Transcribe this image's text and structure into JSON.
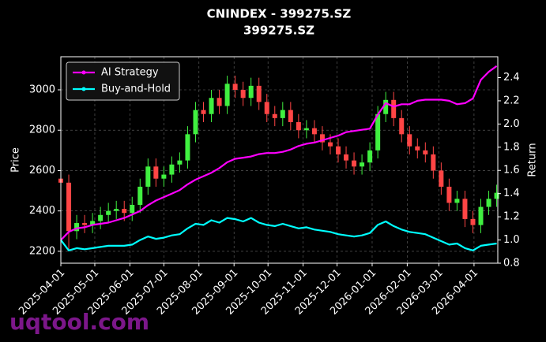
{
  "chart_data": {
    "type": "candlestick",
    "title": "CNINDEX - 399275.SZ",
    "subtitle": "399275.SZ",
    "ylabel": "Price",
    "y2label": "Return",
    "watermark": "uqtool.com",
    "up_color": "#40f040",
    "down_color": "#ff4545",
    "grid": true,
    "legend": "upper-left",
    "xlim": [
      "2025-04-01",
      "2026-04-22"
    ],
    "xticks": [
      "2025-04-01",
      "2025-05-01",
      "2025-06-01",
      "2025-07-01",
      "2025-08-01",
      "2025-09-01",
      "2025-10-01",
      "2025-11-01",
      "2025-12-01",
      "2026-01-01",
      "2026-02-01",
      "2026-03-01",
      "2026-04-01"
    ],
    "ylim": [
      2141,
      3164
    ],
    "yticks": [
      2200,
      2400,
      2600,
      2800,
      3000
    ],
    "y2lim": [
      0.8,
      2.58
    ],
    "y2ticks": [
      0.8,
      {
        "value": 1,
        "label": "1.0"
      },
      1.2,
      1.4,
      1.6,
      1.8,
      {
        "value": 2,
        "label": "2.0"
      },
      2.2,
      2.4
    ],
    "x": [
      "2025-04-01",
      "2025-04-08",
      "2025-04-15",
      "2025-04-22",
      "2025-04-29",
      "2025-05-06",
      "2025-05-13",
      "2025-05-20",
      "2025-05-27",
      "2025-06-03",
      "2025-06-10",
      "2025-06-17",
      "2025-06-24",
      "2025-07-01",
      "2025-07-08",
      "2025-07-15",
      "2025-07-22",
      "2025-07-29",
      "2025-08-05",
      "2025-08-12",
      "2025-08-19",
      "2025-08-26",
      "2025-09-02",
      "2025-09-09",
      "2025-09-16",
      "2025-09-23",
      "2025-09-30",
      "2025-10-07",
      "2025-10-14",
      "2025-10-21",
      "2025-10-28",
      "2025-11-04",
      "2025-11-11",
      "2025-11-18",
      "2025-11-25",
      "2025-12-02",
      "2025-12-09",
      "2025-12-16",
      "2025-12-23",
      "2025-12-30",
      "2026-01-06",
      "2026-01-13",
      "2026-01-20",
      "2026-01-27",
      "2026-02-03",
      "2026-02-10",
      "2026-02-17",
      "2026-02-24",
      "2026-03-03",
      "2026-03-10",
      "2026-03-17",
      "2026-03-24",
      "2026-03-31",
      "2026-04-07",
      "2026-04-14",
      "2026-04-21"
    ],
    "open": [
      2560,
      2540,
      2300,
      2340,
      2330,
      2350,
      2380,
      2400,
      2410,
      2390,
      2430,
      2520,
      2620,
      2560,
      2580,
      2630,
      2650,
      2780,
      2900,
      2880,
      2960,
      2920,
      3030,
      3000,
      2960,
      3020,
      2940,
      2880,
      2860,
      2900,
      2840,
      2800,
      2810,
      2780,
      2740,
      2720,
      2680,
      2650,
      2620,
      2640,
      2700,
      2880,
      2950,
      2860,
      2780,
      2720,
      2700,
      2680,
      2600,
      2520,
      2440,
      2460,
      2360,
      2330,
      2420,
      2460
    ],
    "high": [
      2600,
      2580,
      2380,
      2380,
      2390,
      2420,
      2440,
      2450,
      2450,
      2470,
      2560,
      2660,
      2660,
      2620,
      2670,
      2690,
      2820,
      2940,
      2940,
      3000,
      3000,
      3070,
      3070,
      3040,
      3060,
      3060,
      2980,
      2920,
      2940,
      2940,
      2880,
      2850,
      2850,
      2820,
      2780,
      2760,
      2720,
      2690,
      2680,
      2740,
      2920,
      2990,
      2990,
      2900,
      2820,
      2760,
      2740,
      2720,
      2640,
      2560,
      2500,
      2500,
      2400,
      2460,
      2500,
      2530
    ],
    "low": [
      2500,
      2200,
      2260,
      2290,
      2290,
      2310,
      2340,
      2360,
      2350,
      2350,
      2390,
      2480,
      2520,
      2520,
      2540,
      2590,
      2610,
      2740,
      2840,
      2840,
      2880,
      2880,
      2960,
      2920,
      2920,
      2900,
      2840,
      2820,
      2820,
      2800,
      2760,
      2760,
      2740,
      2700,
      2680,
      2640,
      2610,
      2580,
      2580,
      2600,
      2660,
      2840,
      2820,
      2740,
      2680,
      2660,
      2640,
      2560,
      2480,
      2400,
      2400,
      2320,
      2290,
      2290,
      2380,
      2420
    ],
    "close": [
      2540,
      2300,
      2340,
      2330,
      2350,
      2380,
      2400,
      2410,
      2390,
      2430,
      2520,
      2620,
      2560,
      2580,
      2630,
      2650,
      2780,
      2900,
      2880,
      2960,
      2920,
      3030,
      3000,
      2960,
      3020,
      2940,
      2880,
      2860,
      2900,
      2840,
      2800,
      2810,
      2780,
      2740,
      2720,
      2680,
      2650,
      2620,
      2640,
      2700,
      2880,
      2950,
      2860,
      2780,
      2720,
      2700,
      2680,
      2600,
      2520,
      2440,
      2460,
      2360,
      2330,
      2420,
      2460,
      2490
    ],
    "series": [
      {
        "name": "AI Strategy",
        "color": "#ff00ff",
        "axis": "y2",
        "values": [
          1.0,
          1.07,
          1.1,
          1.11,
          1.13,
          1.14,
          1.15,
          1.17,
          1.19,
          1.22,
          1.25,
          1.3,
          1.34,
          1.37,
          1.4,
          1.43,
          1.48,
          1.52,
          1.55,
          1.58,
          1.62,
          1.67,
          1.7,
          1.71,
          1.72,
          1.74,
          1.75,
          1.75,
          1.76,
          1.78,
          1.81,
          1.83,
          1.84,
          1.86,
          1.88,
          1.9,
          1.93,
          1.94,
          1.95,
          1.96,
          2.08,
          2.18,
          2.15,
          2.17,
          2.17,
          2.2,
          2.21,
          2.21,
          2.21,
          2.2,
          2.17,
          2.18,
          2.22,
          2.38,
          2.45,
          2.5
        ]
      },
      {
        "name": "Buy-and-Hold",
        "color": "#00ffff",
        "axis": "y2",
        "values": [
          1.0,
          0.91,
          0.93,
          0.92,
          0.93,
          0.94,
          0.95,
          0.95,
          0.95,
          0.96,
          1.0,
          1.03,
          1.01,
          1.02,
          1.04,
          1.05,
          1.1,
          1.14,
          1.13,
          1.17,
          1.15,
          1.19,
          1.18,
          1.16,
          1.19,
          1.15,
          1.13,
          1.12,
          1.14,
          1.12,
          1.1,
          1.11,
          1.09,
          1.08,
          1.07,
          1.05,
          1.04,
          1.03,
          1.04,
          1.06,
          1.13,
          1.16,
          1.12,
          1.09,
          1.07,
          1.06,
          1.05,
          1.02,
          0.99,
          0.96,
          0.97,
          0.93,
          0.91,
          0.95,
          0.96,
          0.97
        ]
      }
    ]
  }
}
